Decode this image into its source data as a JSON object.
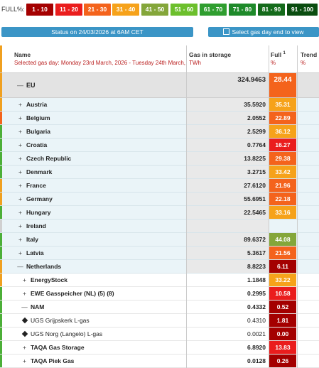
{
  "legend": {
    "label": "FULL%:",
    "chips": [
      {
        "label": "1 - 10",
        "color": "#a40000"
      },
      {
        "label": "11 - 20",
        "color": "#ea1d1d"
      },
      {
        "label": "21 - 30",
        "color": "#f4631c"
      },
      {
        "label": "31 - 40",
        "color": "#f6a21a"
      },
      {
        "label": "41 - 50",
        "color": "#84a63a"
      },
      {
        "label": "51 - 60",
        "color": "#6cbf2c"
      },
      {
        "label": "61 - 70",
        "color": "#2f9e2f"
      },
      {
        "label": "71 - 80",
        "color": "#1e8a2a"
      },
      {
        "label": "81 - 90",
        "color": "#146b1b"
      },
      {
        "label": "91 - 100",
        "color": "#0a4d10"
      }
    ]
  },
  "buttons": {
    "status": "Status on 24/03/2026 at 6AM CET",
    "select_day": "Select gas day end to view"
  },
  "table": {
    "headers": {
      "name": "Name",
      "selected_day": "Selected gas day: Monday 23rd March, 2026 - Tuesday 24th March, 2026",
      "gas": "Gas in storage",
      "gas_unit": "TWh",
      "full": "Full",
      "full_sup": "1",
      "full_unit": "%",
      "trend": "Trend",
      "trend_unit": "%"
    },
    "rows": [
      {
        "name": "EU",
        "toggle": "—",
        "gas": "324.9463",
        "full": "28.44",
        "full_color": "#f4631c",
        "side": "#f0a020",
        "type": "eu",
        "indent": 24
      },
      {
        "name": "Austria",
        "toggle": "+",
        "gas": "35.5920",
        "full": "35.31",
        "full_color": "#f6a21a",
        "side": "#f0a020",
        "type": "blue",
        "indent": 24
      },
      {
        "name": "Belgium",
        "toggle": "+",
        "gas": "2.0552",
        "full": "22.89",
        "full_color": "#f4631c",
        "side": "#f4631c",
        "type": "blue",
        "indent": 24
      },
      {
        "name": "Bulgaria",
        "toggle": "+",
        "gas": "2.5299",
        "full": "36.12",
        "full_color": "#f6a21a",
        "side": "#4caf38",
        "type": "blue",
        "indent": 24
      },
      {
        "name": "Croatia",
        "toggle": "+",
        "gas": "0.7764",
        "full": "16.27",
        "full_color": "#ea1d1d",
        "side": "#4caf38",
        "type": "blue",
        "indent": 24
      },
      {
        "name": "Czech Republic",
        "toggle": "+",
        "gas": "13.8225",
        "full": "29.38",
        "full_color": "#f4631c",
        "side": "#4caf38",
        "type": "blue",
        "indent": 24
      },
      {
        "name": "Denmark",
        "toggle": "+",
        "gas": "3.2715",
        "full": "33.42",
        "full_color": "#f6a21a",
        "side": "#4caf38",
        "type": "blue",
        "indent": 24
      },
      {
        "name": "France",
        "toggle": "+",
        "gas": "27.6120",
        "full": "21.96",
        "full_color": "#f4631c",
        "side": "#f0a020",
        "type": "blue",
        "indent": 24
      },
      {
        "name": "Germany",
        "toggle": "+",
        "gas": "55.6951",
        "full": "22.18",
        "full_color": "#f4631c",
        "side": "#f0a020",
        "type": "blue",
        "indent": 24
      },
      {
        "name": "Hungary",
        "toggle": "+",
        "gas": "22.5465",
        "full": "33.16",
        "full_color": "#f6a21a",
        "side": "#4caf38",
        "type": "blue",
        "indent": 24
      },
      {
        "name": "Ireland",
        "toggle": "+",
        "gas": "",
        "full": "",
        "full_color": "#eaf4f8",
        "side": "#d0d0d0",
        "type": "blue",
        "indent": 24
      },
      {
        "name": "Italy",
        "toggle": "+",
        "gas": "89.6372",
        "full": "44.08",
        "full_color": "#84a63a",
        "side": "#4caf38",
        "type": "blue",
        "indent": 24
      },
      {
        "name": "Latvia",
        "toggle": "+",
        "gas": "5.3617",
        "full": "21.56",
        "full_color": "#f4631c",
        "side": "#4caf38",
        "type": "blue",
        "indent": 24
      },
      {
        "name": "Netherlands",
        "toggle": "—",
        "gas": "8.8223",
        "full": "6.11",
        "full_color": "#a40000",
        "side": "#f0a020",
        "type": "blue",
        "indent": 24
      },
      {
        "name": "EnergyStock",
        "toggle": "+",
        "gas": "1.1848",
        "full": "33.22",
        "full_color": "#f6a21a",
        "side": "#f0a020",
        "type": "white",
        "indent": 30
      },
      {
        "name": "EWE Gasspeicher (NL) (5) (8)",
        "toggle": "+",
        "gas": "0.2995",
        "full": "10.58",
        "full_color": "#ea1d1d",
        "side": "#4caf38",
        "type": "white",
        "indent": 30
      },
      {
        "name": "NAM",
        "toggle": "—",
        "gas": "0.4332",
        "full": "0.52",
        "full_color": "#a40000",
        "side": "#4caf38",
        "type": "white",
        "indent": 30
      },
      {
        "name": "UGS Grijpskerk L-gas",
        "toggle": "diamond",
        "gas": "0.4310",
        "full": "1.81",
        "full_color": "#a40000",
        "side": "#4caf38",
        "type": "leaf",
        "indent": 32
      },
      {
        "name": "UGS Norg (Langelo) L-gas",
        "toggle": "diamond",
        "gas": "0.0021",
        "full": "0.00",
        "full_color": "#a40000",
        "side": "#4caf38",
        "type": "leaf",
        "indent": 32
      },
      {
        "name": "TAQA Gas Storage",
        "toggle": "+",
        "gas": "6.8920",
        "full": "13.83",
        "full_color": "#ea1d1d",
        "side": "#4caf38",
        "type": "white",
        "indent": 30
      },
      {
        "name": "TAQA Piek Gas",
        "toggle": "+",
        "gas": "0.0128",
        "full": "0.26",
        "full_color": "#a40000",
        "side": "#4caf38",
        "type": "white",
        "indent": 30
      }
    ]
  }
}
